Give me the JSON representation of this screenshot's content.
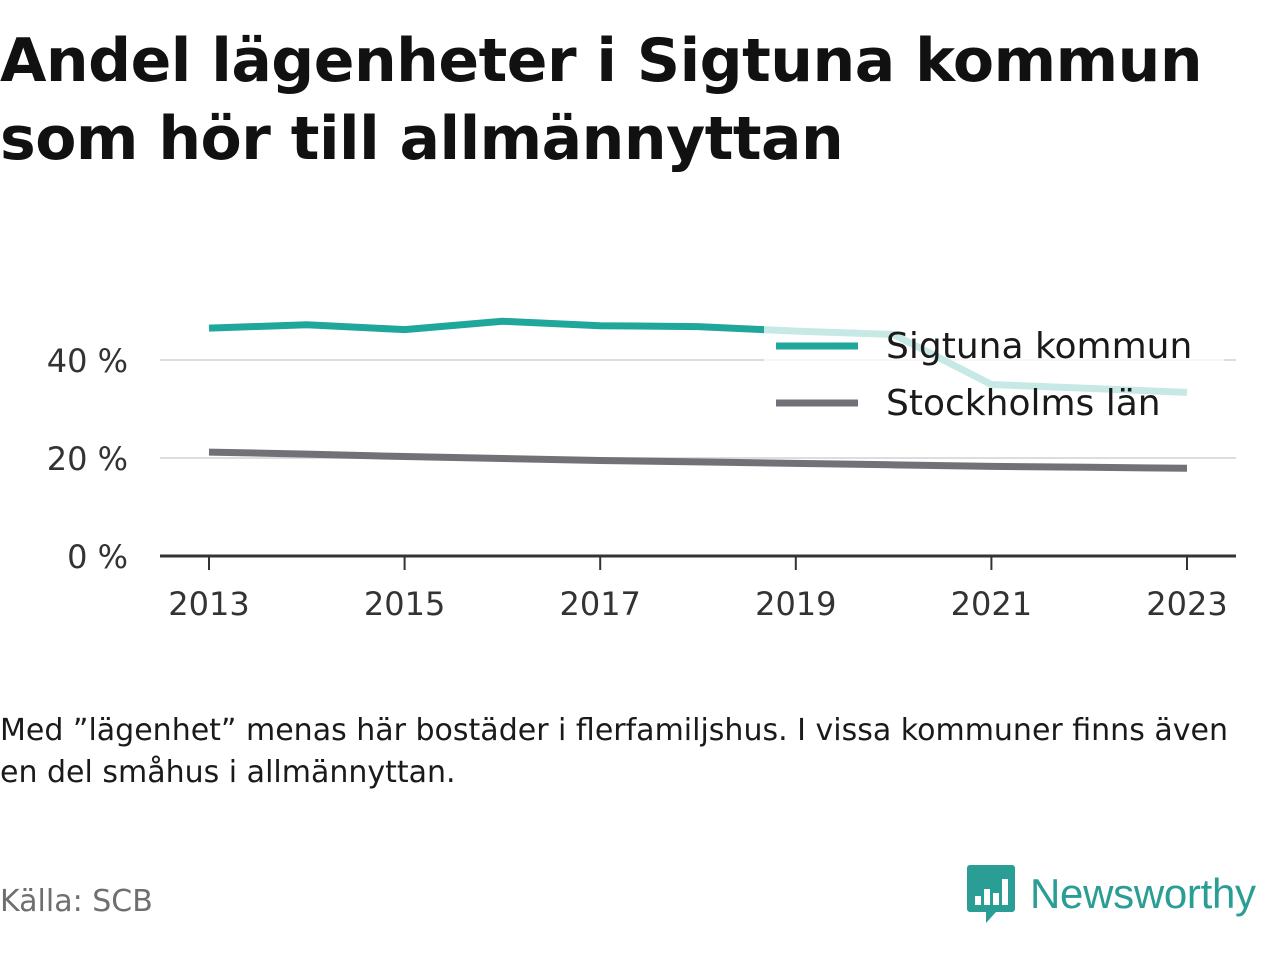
{
  "title": "Andel lägenheter i Sigtuna kommun som hör till allmännyttan",
  "note": "Med ”lägenhet” menas här bostäder i flerfamiljshus. I vissa kommuner finns även en del småhus i allmännyttan.",
  "source": "Källa: SCB",
  "brand": {
    "name": "Newsworthy",
    "color": "#2a9d94"
  },
  "chart_data": {
    "type": "line",
    "title": "Andel lägenheter i Sigtuna kommun som hör till allmännyttan",
    "xlabel": "",
    "ylabel": "",
    "x": [
      2013,
      2014,
      2015,
      2016,
      2017,
      2018,
      2019,
      2020,
      2021,
      2022,
      2023
    ],
    "x_ticks": [
      "2013",
      "2015",
      "2017",
      "2019",
      "2021",
      "2023"
    ],
    "y_ticks": [
      "0 %",
      "20 %",
      "40 %"
    ],
    "ylim": [
      0,
      50
    ],
    "grid": true,
    "legend": "top-right",
    "series": [
      {
        "name": "Sigtuna kommun",
        "color": "#1fa79c",
        "values": [
          46.5,
          47.2,
          46.2,
          47.9,
          47.0,
          46.8,
          45.9,
          45.2,
          35.0,
          34.2,
          33.4
        ]
      },
      {
        "name": "Stockholms län",
        "color": "#727178",
        "values": [
          21.2,
          20.8,
          20.3,
          19.9,
          19.5,
          19.2,
          18.9,
          18.6,
          18.3,
          18.1,
          17.9
        ]
      }
    ]
  }
}
